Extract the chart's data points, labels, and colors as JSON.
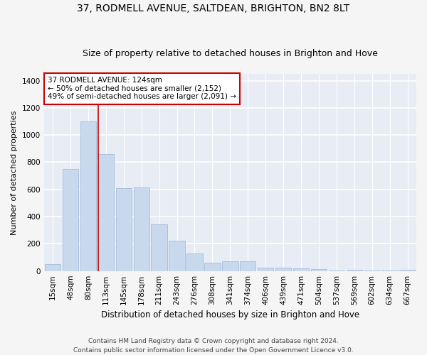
{
  "title1": "37, RODMELL AVENUE, SALTDEAN, BRIGHTON, BN2 8LT",
  "title2": "Size of property relative to detached houses in Brighton and Hove",
  "xlabel": "Distribution of detached houses by size in Brighton and Hove",
  "ylabel": "Number of detached properties",
  "categories": [
    "15sqm",
    "48sqm",
    "80sqm",
    "113sqm",
    "145sqm",
    "178sqm",
    "211sqm",
    "243sqm",
    "276sqm",
    "308sqm",
    "341sqm",
    "374sqm",
    "406sqm",
    "439sqm",
    "471sqm",
    "504sqm",
    "537sqm",
    "569sqm",
    "602sqm",
    "634sqm",
    "667sqm"
  ],
  "values": [
    50,
    750,
    1100,
    860,
    610,
    615,
    345,
    225,
    130,
    60,
    70,
    70,
    25,
    25,
    18,
    12,
    2,
    8,
    2,
    2,
    8
  ],
  "bar_color": "#c8d9ee",
  "bar_edge_color": "#9ab5d4",
  "bg_color": "#e8ecf4",
  "grid_color": "#ffffff",
  "annotation_box_color": "#ffffff",
  "annotation_border_color": "#cc0000",
  "vline_color": "#cc0000",
  "vline_x": 2.56,
  "property_label": "37 RODMELL AVENUE: 124sqm",
  "annotation_line1": "← 50% of detached houses are smaller (2,152)",
  "annotation_line2": "49% of semi-detached houses are larger (2,091) →",
  "ylim": [
    0,
    1450
  ],
  "yticks": [
    0,
    200,
    400,
    600,
    800,
    1000,
    1200,
    1400
  ],
  "footer1": "Contains HM Land Registry data © Crown copyright and database right 2024.",
  "footer2": "Contains public sector information licensed under the Open Government Licence v3.0.",
  "title1_fontsize": 10,
  "title2_fontsize": 9,
  "xlabel_fontsize": 8.5,
  "ylabel_fontsize": 8,
  "tick_fontsize": 7.5,
  "footer_fontsize": 6.5,
  "annotation_fontsize": 7.5
}
